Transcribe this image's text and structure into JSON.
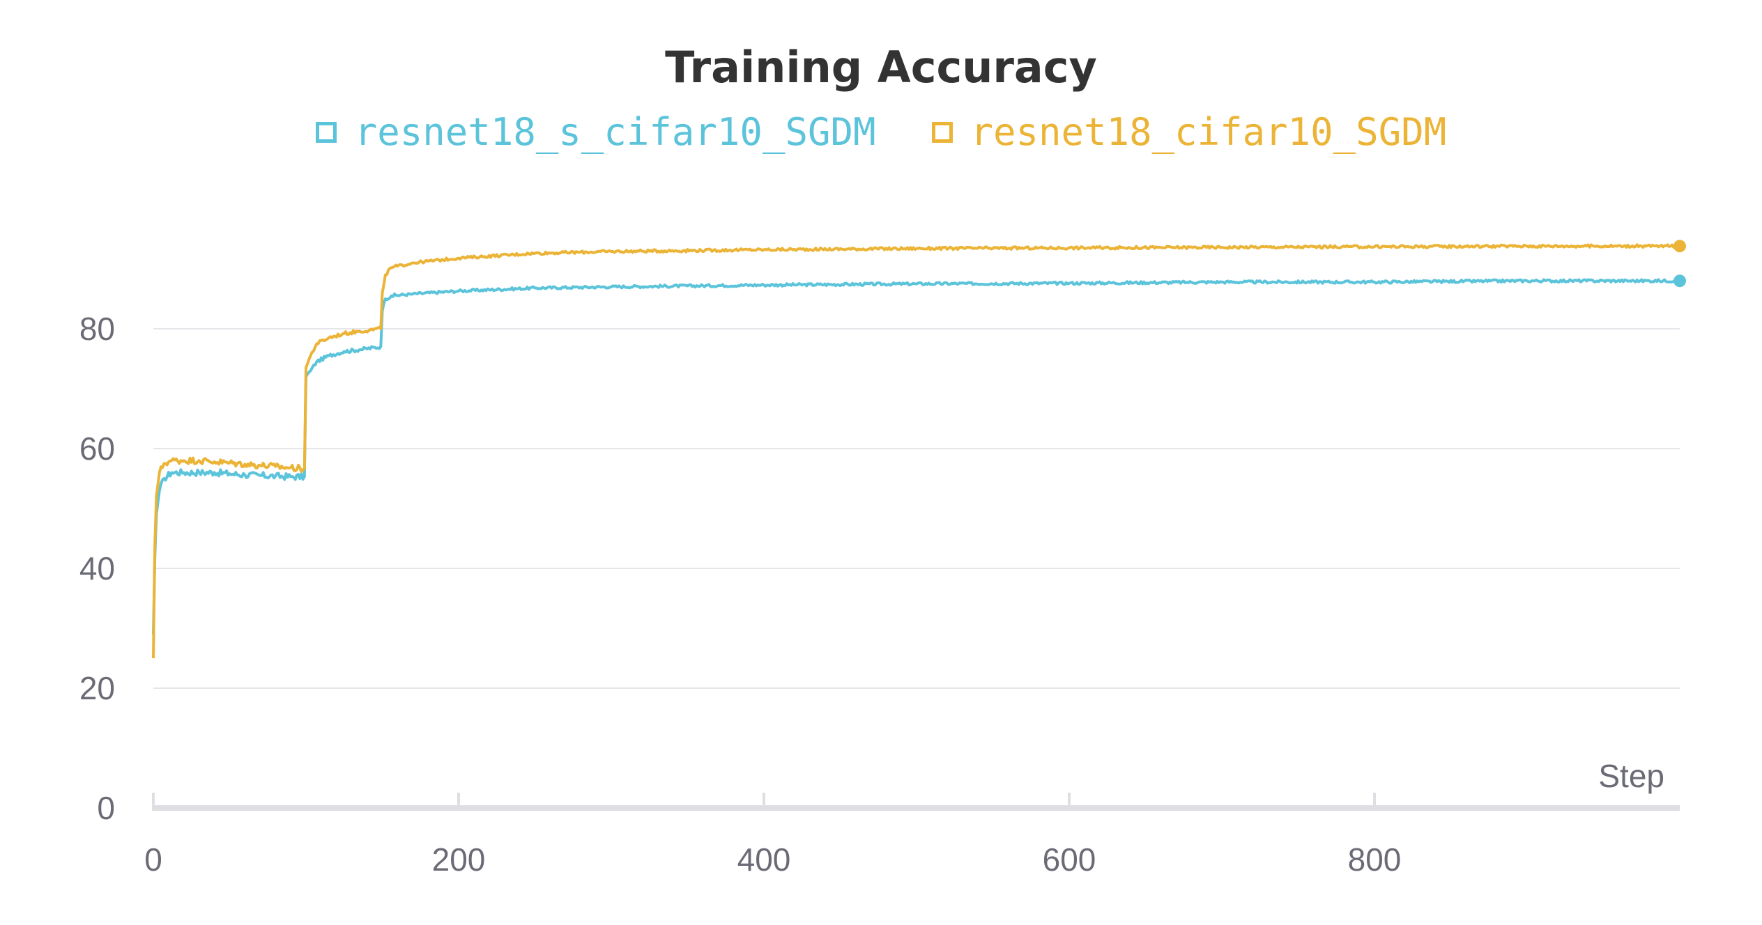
{
  "chart_data": {
    "type": "line",
    "title": "Training Accuracy",
    "xlabel": "Step",
    "ylabel": "",
    "xlim": [
      0,
      1000
    ],
    "ylim": [
      0,
      100
    ],
    "x_ticks": [
      0,
      200,
      400,
      600,
      800
    ],
    "y_ticks": [
      0,
      20,
      40,
      60,
      80
    ],
    "grid": true,
    "legend_position": "top-center",
    "series": [
      {
        "name": "resnet18_s_cifar10_SGDM",
        "color": "#5bc3da",
        "points": [
          [
            0,
            29
          ],
          [
            1,
            42
          ],
          [
            2,
            49
          ],
          [
            4,
            53
          ],
          [
            7,
            55
          ],
          [
            12,
            56
          ],
          [
            20,
            56
          ],
          [
            30,
            56
          ],
          [
            40,
            56
          ],
          [
            50,
            55.8
          ],
          [
            60,
            55.6
          ],
          [
            70,
            55.5
          ],
          [
            80,
            55.4
          ],
          [
            90,
            55.3
          ],
          [
            99,
            55.3
          ],
          [
            100,
            72
          ],
          [
            103,
            73
          ],
          [
            107,
            74.5
          ],
          [
            115,
            75.5
          ],
          [
            125,
            76.2
          ],
          [
            135,
            76.5
          ],
          [
            149,
            77
          ],
          [
            150,
            83
          ],
          [
            152,
            85
          ],
          [
            156,
            85.5
          ],
          [
            170,
            85.8
          ],
          [
            200,
            86.3
          ],
          [
            250,
            86.8
          ],
          [
            300,
            87
          ],
          [
            400,
            87.3
          ],
          [
            500,
            87.5
          ],
          [
            600,
            87.6
          ],
          [
            700,
            87.8
          ],
          [
            800,
            87.8
          ],
          [
            900,
            88
          ],
          [
            1000,
            88
          ]
        ]
      },
      {
        "name": "resnet18_cifar10_SGDM",
        "color": "#ebb437",
        "points": [
          [
            0,
            25
          ],
          [
            1,
            44
          ],
          [
            2,
            52
          ],
          [
            4,
            56
          ],
          [
            7,
            57.5
          ],
          [
            12,
            58
          ],
          [
            20,
            58
          ],
          [
            30,
            58
          ],
          [
            40,
            57.8
          ],
          [
            50,
            57.6
          ],
          [
            60,
            57.4
          ],
          [
            70,
            57.2
          ],
          [
            80,
            57
          ],
          [
            90,
            56.8
          ],
          [
            99,
            56.6
          ],
          [
            100,
            73.5
          ],
          [
            103,
            75.5
          ],
          [
            107,
            77.5
          ],
          [
            115,
            78.5
          ],
          [
            125,
            79.2
          ],
          [
            135,
            79.6
          ],
          [
            149,
            80
          ],
          [
            150,
            86
          ],
          [
            152,
            89
          ],
          [
            156,
            90.2
          ],
          [
            170,
            91
          ],
          [
            200,
            91.8
          ],
          [
            250,
            92.6
          ],
          [
            300,
            92.9
          ],
          [
            400,
            93.2
          ],
          [
            500,
            93.4
          ],
          [
            600,
            93.5
          ],
          [
            700,
            93.6
          ],
          [
            800,
            93.7
          ],
          [
            900,
            93.8
          ],
          [
            1000,
            93.8
          ]
        ]
      }
    ]
  }
}
